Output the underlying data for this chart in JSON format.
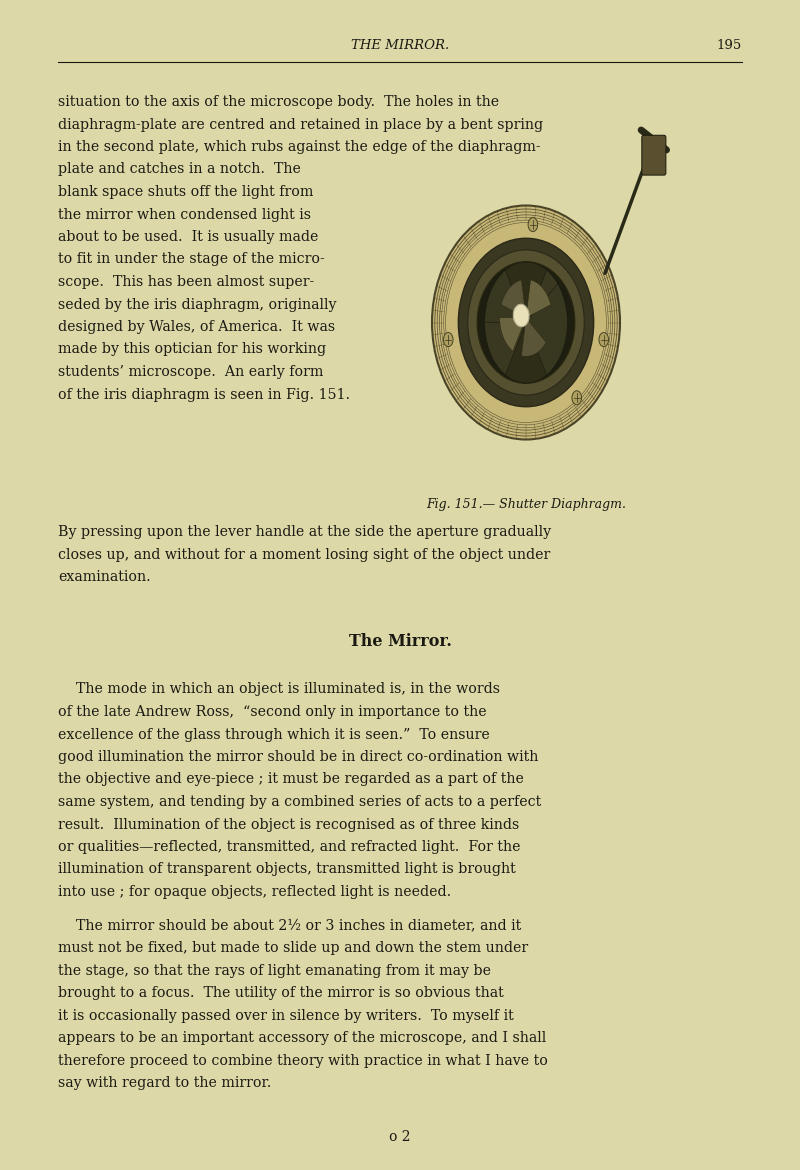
{
  "page_bg_color": "#ddd8a8",
  "text_color": "#1a1a12",
  "header_text": "THE MIRROR.",
  "header_page_num": "195",
  "section_title": "The Mirror.",
  "fig_caption": "Fig. 151.— Shutter Diaphragm.",
  "footer_text": "o 2",
  "full_width_lines": [
    "situation to the axis of the microscope body.  The holes in the",
    "diaphragm-plate are centred and retained in place by a bent spring",
    "in the second plate, which rubs against the edge of the diaphragm-"
  ],
  "left_col_lines": [
    "plate and catches in a notch.  The",
    "blank space shuts off the light from",
    "the mirror when condensed light is",
    "about to be used.  It is usually made",
    "to fit in under the stage of the micro-",
    "scope.  This has been almost super-",
    "seded by the iris diaphragm, originally",
    "designed by Wales, of America.  It was",
    "made by this optician for his working",
    "students’ microscope.  An early form",
    "of the iris diaphragm is seen in Fig. 151."
  ],
  "after_fig_lines": [
    "By pressing upon the lever handle at the side the aperture gradually",
    "closes up, and without for a moment losing sight of the object under",
    "examination."
  ],
  "mirror_section_lines": [
    "    The mode in which an object is illuminated is, in the words",
    "of the late Andrew Ross,  “second only in importance to the",
    "excellence of the glass through which it is seen.”  To ensure",
    "good illumination the mirror should be in direct co-ordination with",
    "the objective and eye-piece ; it must be regarded as a part of the",
    "same system, and tending by a combined series of acts to a perfect",
    "result.  Illumination of the object is recognised as of three kinds",
    "or qualities—reflected, transmitted, and refracted light.  For the",
    "illumination of transparent objects, transmitted light is brought",
    "into use ; for opaque objects, reflected light is needed."
  ],
  "last_section_lines": [
    "    The mirror should be about 2½ or 3 inches in diameter, and it",
    "must not be fixed, but made to slide up and down the stem under",
    "the stage, so that the rays of light emanating from it may be",
    "brought to a focus.  The utility of the mirror is so obvious that",
    "it is occasionally passed over in silence by writers.  To myself it",
    "appears to be an important accessory of the microscope, and I shall",
    "therefore proceed to combine theory with practice in what I have to",
    "say with regard to the mirror."
  ]
}
